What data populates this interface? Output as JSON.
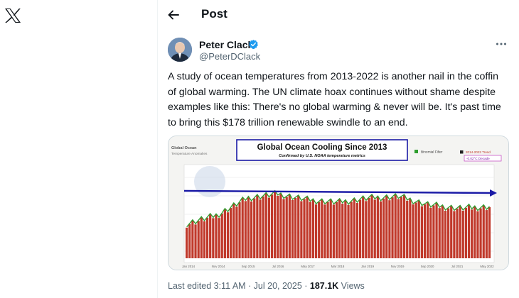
{
  "icons": {
    "logo": "x-logo-icon",
    "back": "arrow-left-icon",
    "verified": "verified-badge-icon",
    "more": "more-dots-icon"
  },
  "header": {
    "title": "Post"
  },
  "author": {
    "name": "Peter Clack",
    "handle": "@PeterDClack"
  },
  "tweet": {
    "text": "A study of ocean temperatures from 2013-2022 is another nail in the coffin of global warming. The UN climate hoax continues without shame despite examples like this: There's no global warming & never will be. It's past time to bring this $178 trillion renewable swindle to an end."
  },
  "media": {
    "label_top_left": "Global Ocean",
    "label_top_left_sub": "Temperature Anomalies",
    "title": "Global Ocean Cooling Since 2013",
    "subtitle": "Confirmed by U.S. NOAA temperature metrics",
    "legend_filter": "Binomial Filter",
    "legend_trend": "2014-2022 Trend",
    "legend_trend_value": "-0.02°C Decade",
    "x_ticks": [
      "Jan 2014",
      "Nov 2014",
      "Sep 2015",
      "Jul 2016",
      "May 2017",
      "Mar 2018",
      "Jan 2019",
      "Nov 2019",
      "Sep 2020",
      "Jul 2021",
      "May 2022"
    ],
    "accent_colors": {
      "bar": "#c0392b",
      "trend": "#1a1aa6",
      "filter": "#2e9e2e",
      "title_box": "#1a1aa6"
    }
  },
  "chart_data": {
    "type": "bar",
    "title": "Global Ocean Cooling Since 2013",
    "subtitle": "Confirmed by U.S. NOAA temperature metrics",
    "x": [
      "Jan 2014",
      "Nov 2014",
      "Sep 2015",
      "Jul 2016",
      "May 2017",
      "Mar 2018",
      "Jan 2019",
      "Nov 2019",
      "Sep 2020",
      "Jul 2021",
      "May 2022"
    ],
    "values": [
      0.4,
      0.5,
      0.7,
      0.75,
      0.68,
      0.65,
      0.7,
      0.72,
      0.62,
      0.58,
      0.6
    ]
  },
  "footer": {
    "edited": "Last edited 3:11 AM · Jul 20, 2025 · ",
    "views_count": "187.1K",
    "views_label": " Views"
  }
}
